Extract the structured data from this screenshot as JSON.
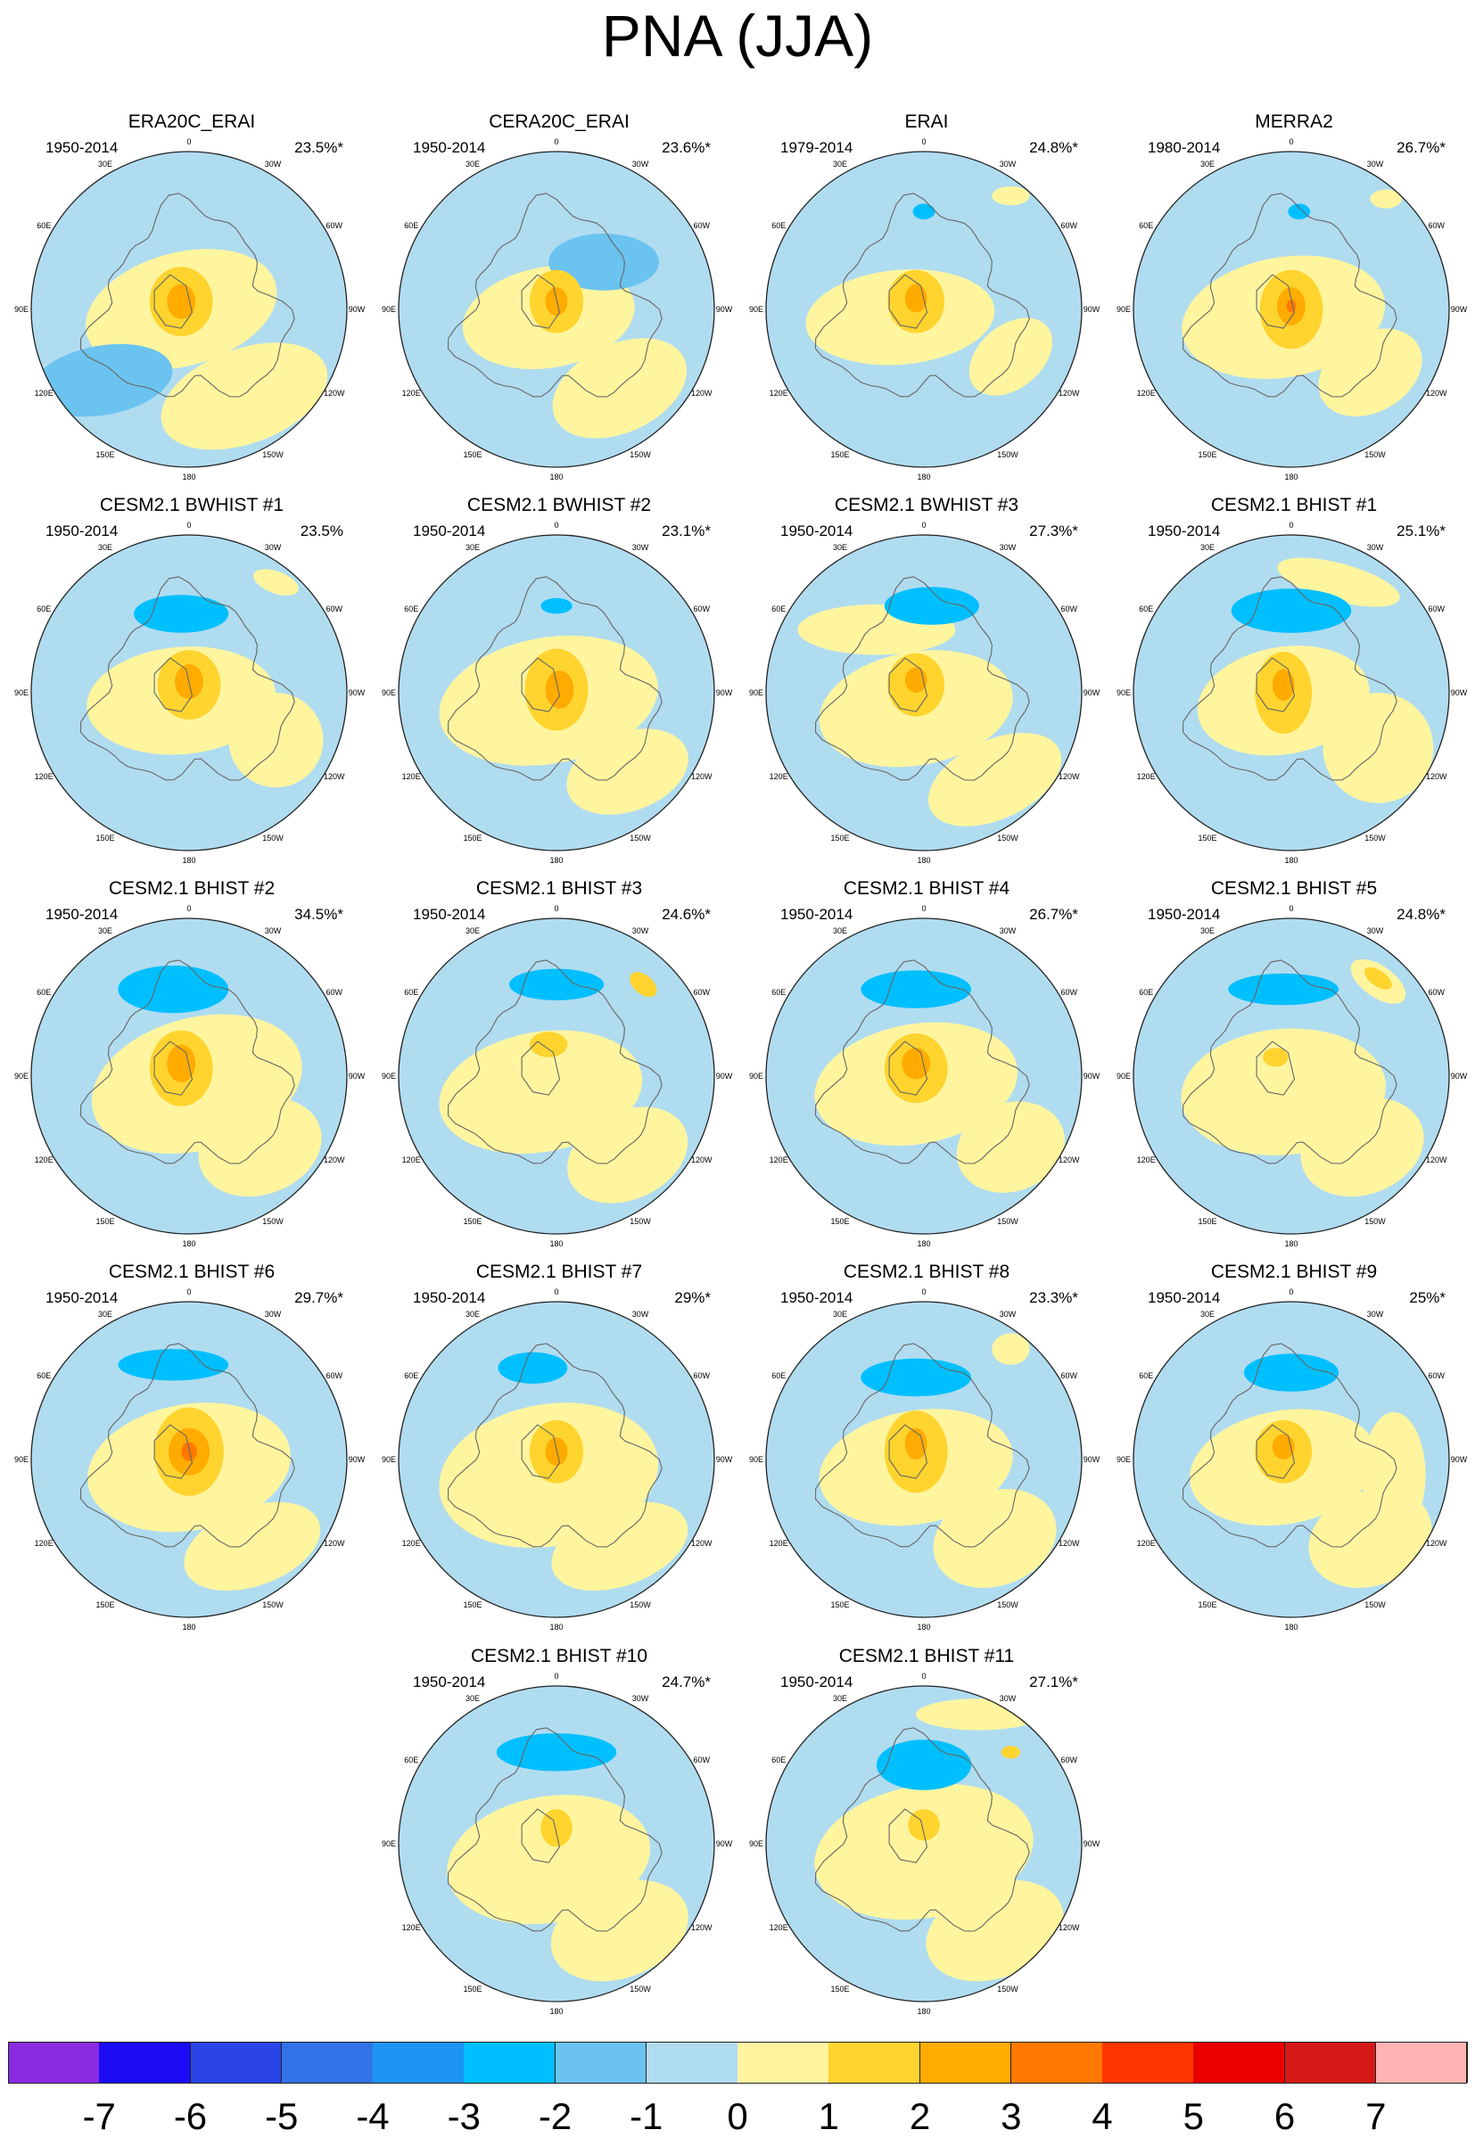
{
  "title": "PNA (JJA)",
  "chart_data": {
    "type": "polar_contour_maps",
    "projection": "Northern Hemisphere polar stereographic, centered on North Pole",
    "longitude_labels": [
      "180",
      "150E",
      "120E",
      "90E",
      "60E",
      "30E",
      "0",
      "30W",
      "60W",
      "90W",
      "120W",
      "150W"
    ],
    "panels": [
      {
        "title": "ERA20C_ERAI",
        "period": "1950-2014",
        "variance": "23.5%*"
      },
      {
        "title": "CERA20C_ERAI",
        "period": "1950-2014",
        "variance": "23.6%*"
      },
      {
        "title": "ERAI",
        "period": "1979-2014",
        "variance": "24.8%*"
      },
      {
        "title": "MERRA2",
        "period": "1980-2014",
        "variance": "26.7%*"
      },
      {
        "title": "CESM2.1 BWHIST #1",
        "period": "1950-2014",
        "variance": "23.5%"
      },
      {
        "title": "CESM2.1 BWHIST #2",
        "period": "1950-2014",
        "variance": "23.1%*"
      },
      {
        "title": "CESM2.1 BWHIST #3",
        "period": "1950-2014",
        "variance": "27.3%*"
      },
      {
        "title": "CESM2.1 BHIST #1",
        "period": "1950-2014",
        "variance": "25.1%*"
      },
      {
        "title": "CESM2.1 BHIST #2",
        "period": "1950-2014",
        "variance": "34.5%*"
      },
      {
        "title": "CESM2.1 BHIST #3",
        "period": "1950-2014",
        "variance": "24.6%*"
      },
      {
        "title": "CESM2.1 BHIST #4",
        "period": "1950-2014",
        "variance": "26.7%*"
      },
      {
        "title": "CESM2.1 BHIST #5",
        "period": "1950-2014",
        "variance": "24.8%*"
      },
      {
        "title": "CESM2.1 BHIST #6",
        "period": "1950-2014",
        "variance": "29.7%*"
      },
      {
        "title": "CESM2.1 BHIST #7",
        "period": "1950-2014",
        "variance": "29%*"
      },
      {
        "title": "CESM2.1 BHIST #8",
        "period": "1950-2014",
        "variance": "23.3%*"
      },
      {
        "title": "CESM2.1 BHIST #9",
        "period": "1950-2014",
        "variance": "25%*"
      },
      {
        "title": "CESM2.1 BHIST #10",
        "period": "1950-2014",
        "variance": "24.7%*"
      },
      {
        "title": "CESM2.1 BHIST #11",
        "period": "1950-2014",
        "variance": "27.1%*"
      }
    ],
    "colorbar": {
      "labels": [
        "-7",
        "-6",
        "-5",
        "-4",
        "-3",
        "-2",
        "-1",
        "0",
        "1",
        "2",
        "3",
        "4",
        "5",
        "6",
        "7"
      ],
      "colors": [
        "#8a2be2",
        "#1c0cf4",
        "#2a44e6",
        "#3173e6",
        "#1e95f5",
        "#00bfff",
        "#6bc3ef",
        "#b0dcf0",
        "#fff59f",
        "#ffd42f",
        "#ffab00",
        "#ff7900",
        "#ff3500",
        "#ea0000",
        "#d51919",
        "#ffb3b3"
      ]
    }
  }
}
